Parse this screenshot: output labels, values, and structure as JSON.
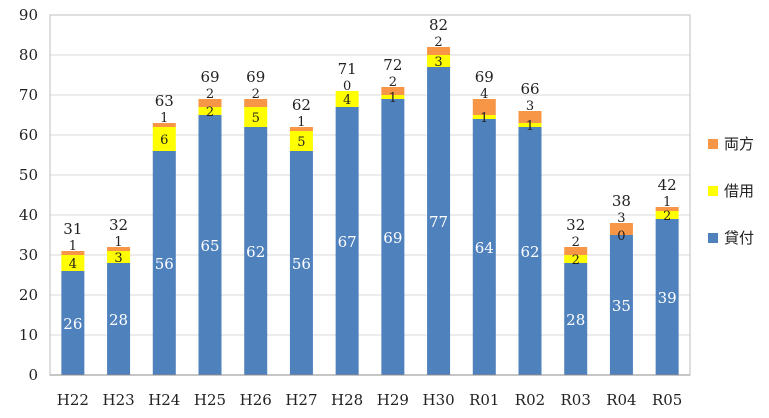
{
  "chart_data": {
    "type": "bar",
    "stacked": true,
    "title": "",
    "xlabel": "",
    "ylabel": "",
    "ylim": [
      0,
      90
    ],
    "yticks": [
      0,
      10,
      20,
      30,
      40,
      50,
      60,
      70,
      80,
      90
    ],
    "grid": true,
    "legend_position": "right",
    "categories": [
      "H22",
      "H23",
      "H24",
      "H25",
      "H26",
      "H27",
      "H28",
      "H29",
      "H30",
      "R01",
      "R02",
      "R03",
      "R04",
      "R05"
    ],
    "series": [
      {
        "name": "貸付",
        "color": "#4F81BD",
        "values": [
          26,
          28,
          56,
          65,
          62,
          56,
          67,
          69,
          77,
          64,
          62,
          28,
          35,
          39
        ]
      },
      {
        "name": "借用",
        "color": "#FFFF00",
        "values": [
          4,
          3,
          6,
          2,
          5,
          5,
          4,
          1,
          3,
          1,
          1,
          2,
          0,
          2
        ]
      },
      {
        "name": "両方",
        "color": "#F79646",
        "values": [
          1,
          1,
          1,
          2,
          2,
          1,
          0,
          2,
          2,
          4,
          3,
          2,
          3,
          1
        ]
      }
    ],
    "totals": [
      31,
      32,
      63,
      69,
      69,
      62,
      71,
      72,
      82,
      69,
      66,
      32,
      38,
      42
    ]
  }
}
